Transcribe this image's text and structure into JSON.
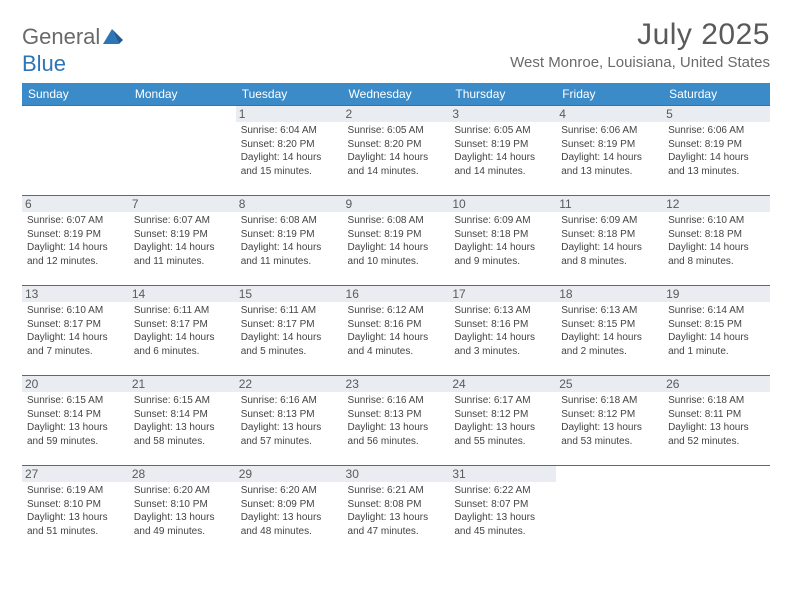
{
  "brand": {
    "name_part1": "General",
    "name_part2": "Blue"
  },
  "title": "July 2025",
  "location": "West Monroe, Louisiana, United States",
  "colors": {
    "header_bg": "#3b8bc9",
    "border": "#2e75b6",
    "daynum_bg": "#e9edf2",
    "text": "#333333",
    "muted": "#6a6a6a"
  },
  "day_names": [
    "Sunday",
    "Monday",
    "Tuesday",
    "Wednesday",
    "Thursday",
    "Friday",
    "Saturday"
  ],
  "weeks": [
    [
      null,
      null,
      {
        "n": "1",
        "sr": "Sunrise: 6:04 AM",
        "ss": "Sunset: 8:20 PM",
        "dl": "Daylight: 14 hours and 15 minutes."
      },
      {
        "n": "2",
        "sr": "Sunrise: 6:05 AM",
        "ss": "Sunset: 8:20 PM",
        "dl": "Daylight: 14 hours and 14 minutes."
      },
      {
        "n": "3",
        "sr": "Sunrise: 6:05 AM",
        "ss": "Sunset: 8:19 PM",
        "dl": "Daylight: 14 hours and 14 minutes."
      },
      {
        "n": "4",
        "sr": "Sunrise: 6:06 AM",
        "ss": "Sunset: 8:19 PM",
        "dl": "Daylight: 14 hours and 13 minutes."
      },
      {
        "n": "5",
        "sr": "Sunrise: 6:06 AM",
        "ss": "Sunset: 8:19 PM",
        "dl": "Daylight: 14 hours and 13 minutes."
      }
    ],
    [
      {
        "n": "6",
        "sr": "Sunrise: 6:07 AM",
        "ss": "Sunset: 8:19 PM",
        "dl": "Daylight: 14 hours and 12 minutes."
      },
      {
        "n": "7",
        "sr": "Sunrise: 6:07 AM",
        "ss": "Sunset: 8:19 PM",
        "dl": "Daylight: 14 hours and 11 minutes."
      },
      {
        "n": "8",
        "sr": "Sunrise: 6:08 AM",
        "ss": "Sunset: 8:19 PM",
        "dl": "Daylight: 14 hours and 11 minutes."
      },
      {
        "n": "9",
        "sr": "Sunrise: 6:08 AM",
        "ss": "Sunset: 8:19 PM",
        "dl": "Daylight: 14 hours and 10 minutes."
      },
      {
        "n": "10",
        "sr": "Sunrise: 6:09 AM",
        "ss": "Sunset: 8:18 PM",
        "dl": "Daylight: 14 hours and 9 minutes."
      },
      {
        "n": "11",
        "sr": "Sunrise: 6:09 AM",
        "ss": "Sunset: 8:18 PM",
        "dl": "Daylight: 14 hours and 8 minutes."
      },
      {
        "n": "12",
        "sr": "Sunrise: 6:10 AM",
        "ss": "Sunset: 8:18 PM",
        "dl": "Daylight: 14 hours and 8 minutes."
      }
    ],
    [
      {
        "n": "13",
        "sr": "Sunrise: 6:10 AM",
        "ss": "Sunset: 8:17 PM",
        "dl": "Daylight: 14 hours and 7 minutes."
      },
      {
        "n": "14",
        "sr": "Sunrise: 6:11 AM",
        "ss": "Sunset: 8:17 PM",
        "dl": "Daylight: 14 hours and 6 minutes."
      },
      {
        "n": "15",
        "sr": "Sunrise: 6:11 AM",
        "ss": "Sunset: 8:17 PM",
        "dl": "Daylight: 14 hours and 5 minutes."
      },
      {
        "n": "16",
        "sr": "Sunrise: 6:12 AM",
        "ss": "Sunset: 8:16 PM",
        "dl": "Daylight: 14 hours and 4 minutes."
      },
      {
        "n": "17",
        "sr": "Sunrise: 6:13 AM",
        "ss": "Sunset: 8:16 PM",
        "dl": "Daylight: 14 hours and 3 minutes."
      },
      {
        "n": "18",
        "sr": "Sunrise: 6:13 AM",
        "ss": "Sunset: 8:15 PM",
        "dl": "Daylight: 14 hours and 2 minutes."
      },
      {
        "n": "19",
        "sr": "Sunrise: 6:14 AM",
        "ss": "Sunset: 8:15 PM",
        "dl": "Daylight: 14 hours and 1 minute."
      }
    ],
    [
      {
        "n": "20",
        "sr": "Sunrise: 6:15 AM",
        "ss": "Sunset: 8:14 PM",
        "dl": "Daylight: 13 hours and 59 minutes."
      },
      {
        "n": "21",
        "sr": "Sunrise: 6:15 AM",
        "ss": "Sunset: 8:14 PM",
        "dl": "Daylight: 13 hours and 58 minutes."
      },
      {
        "n": "22",
        "sr": "Sunrise: 6:16 AM",
        "ss": "Sunset: 8:13 PM",
        "dl": "Daylight: 13 hours and 57 minutes."
      },
      {
        "n": "23",
        "sr": "Sunrise: 6:16 AM",
        "ss": "Sunset: 8:13 PM",
        "dl": "Daylight: 13 hours and 56 minutes."
      },
      {
        "n": "24",
        "sr": "Sunrise: 6:17 AM",
        "ss": "Sunset: 8:12 PM",
        "dl": "Daylight: 13 hours and 55 minutes."
      },
      {
        "n": "25",
        "sr": "Sunrise: 6:18 AM",
        "ss": "Sunset: 8:12 PM",
        "dl": "Daylight: 13 hours and 53 minutes."
      },
      {
        "n": "26",
        "sr": "Sunrise: 6:18 AM",
        "ss": "Sunset: 8:11 PM",
        "dl": "Daylight: 13 hours and 52 minutes."
      }
    ],
    [
      {
        "n": "27",
        "sr": "Sunrise: 6:19 AM",
        "ss": "Sunset: 8:10 PM",
        "dl": "Daylight: 13 hours and 51 minutes."
      },
      {
        "n": "28",
        "sr": "Sunrise: 6:20 AM",
        "ss": "Sunset: 8:10 PM",
        "dl": "Daylight: 13 hours and 49 minutes."
      },
      {
        "n": "29",
        "sr": "Sunrise: 6:20 AM",
        "ss": "Sunset: 8:09 PM",
        "dl": "Daylight: 13 hours and 48 minutes."
      },
      {
        "n": "30",
        "sr": "Sunrise: 6:21 AM",
        "ss": "Sunset: 8:08 PM",
        "dl": "Daylight: 13 hours and 47 minutes."
      },
      {
        "n": "31",
        "sr": "Sunrise: 6:22 AM",
        "ss": "Sunset: 8:07 PM",
        "dl": "Daylight: 13 hours and 45 minutes."
      },
      null,
      null
    ]
  ]
}
